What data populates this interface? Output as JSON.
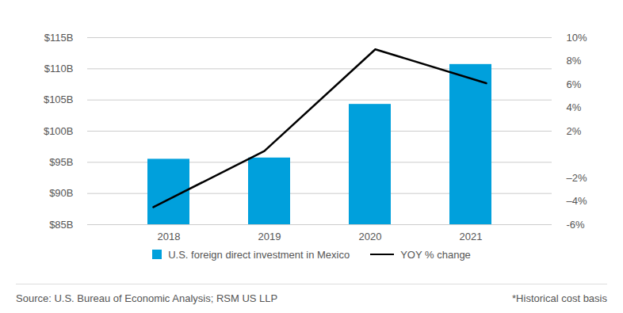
{
  "chart_data": {
    "type": "bar",
    "categories": [
      "2018",
      "2019",
      "2020",
      "2021"
    ],
    "series": [
      {
        "name": "U.S. foreign direct investment in Mexico",
        "type": "bar",
        "color": "#00a0dc",
        "values": [
          95.5,
          95.7,
          104.3,
          110.7
        ]
      },
      {
        "name": "YOY % change",
        "type": "line",
        "axis": "y2",
        "color": "#000000",
        "values": [
          -4.5,
          0.3,
          9.0,
          6.1
        ]
      }
    ],
    "ylim": [
      85,
      115
    ],
    "yticks": [
      {
        "value": 85,
        "label": "$85B"
      },
      {
        "value": 90,
        "label": "$90B"
      },
      {
        "value": 95,
        "label": "$95B"
      },
      {
        "value": 100,
        "label": "$100B"
      },
      {
        "value": 105,
        "label": "$105B"
      },
      {
        "value": 110,
        "label": "$110B"
      },
      {
        "value": 115,
        "label": "$115B"
      }
    ],
    "y2lim": [
      -6,
      10
    ],
    "y2ticks": [
      {
        "value": -6,
        "label": "-6%"
      },
      {
        "value": -4,
        "label": "–4%"
      },
      {
        "value": -2,
        "label": "–2%"
      },
      {
        "value": 2,
        "label": "2%"
      },
      {
        "value": 4,
        "label": "4%"
      },
      {
        "value": 6,
        "label": "6%"
      },
      {
        "value": 8,
        "label": "8%"
      },
      {
        "value": 10,
        "label": "10%"
      }
    ],
    "grid": true,
    "legend": "bottom",
    "source": "Source: U.S. Bureau of Economic Analysis; RSM US LLP",
    "note": "*Historical cost basis"
  }
}
